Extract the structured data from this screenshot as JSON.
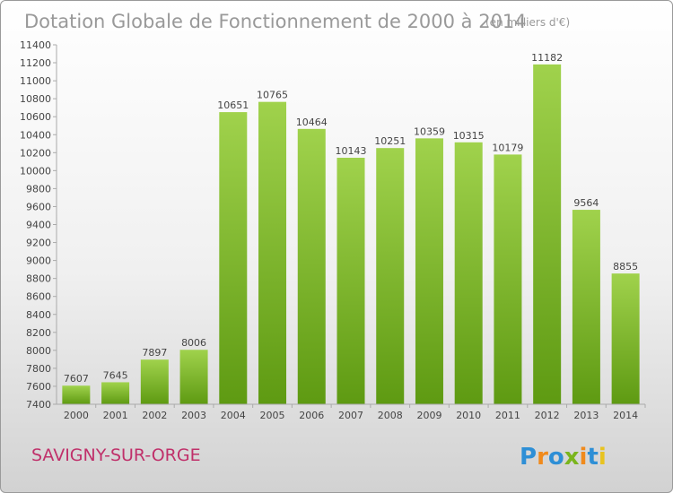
{
  "chart_data": {
    "type": "bar",
    "title": "Dotation Globale de Fonctionnement de 2000 à 2014",
    "subtitle": "(en milliers d'€)",
    "xlabel": "",
    "ylabel": "",
    "categories": [
      "2000",
      "2001",
      "2002",
      "2003",
      "2004",
      "2005",
      "2006",
      "2007",
      "2008",
      "2009",
      "2010",
      "2011",
      "2012",
      "2013",
      "2014"
    ],
    "values": [
      7607,
      7645,
      7897,
      8006,
      10651,
      10765,
      10464,
      10143,
      10251,
      10359,
      10315,
      10179,
      11182,
      9564,
      8855
    ],
    "ylim": [
      7400,
      11400
    ],
    "yticks": [
      7400,
      7600,
      7800,
      8000,
      8200,
      8400,
      8600,
      8800,
      9000,
      9200,
      9400,
      9600,
      9800,
      10000,
      10200,
      10400,
      10600,
      10800,
      11000,
      11200,
      11400
    ],
    "grid": false,
    "legend": "none",
    "bar_color": "#7ab51d",
    "title_color": "#999999"
  },
  "footer": {
    "city": "SAVIGNY-SUR-ORGE",
    "city_color": "#c0306a",
    "logo_text": "Proxiti"
  }
}
